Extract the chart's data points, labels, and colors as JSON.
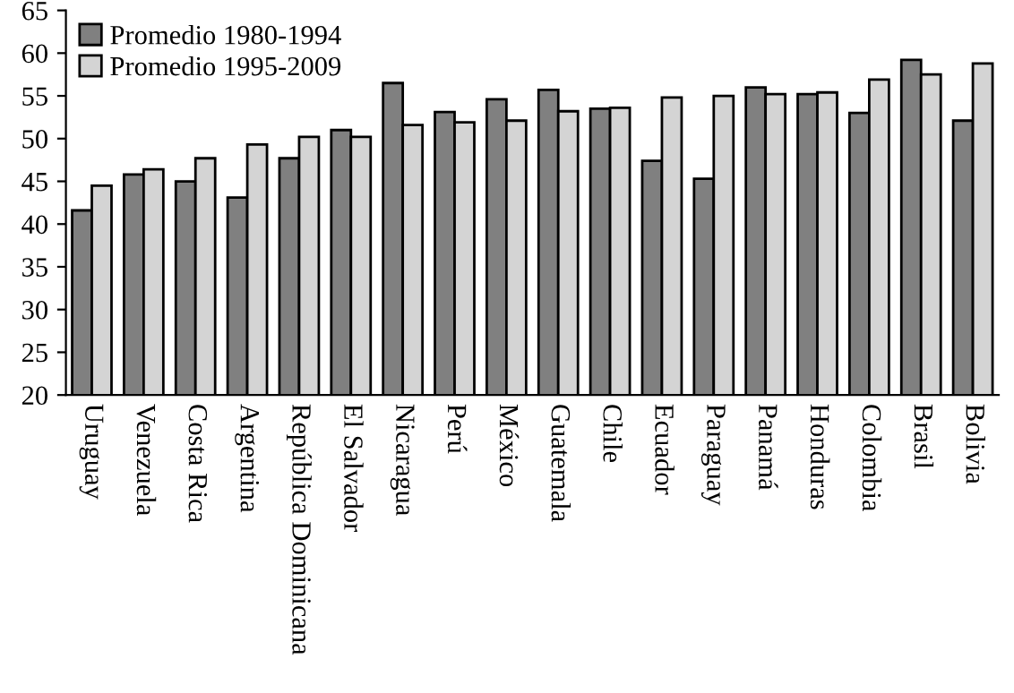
{
  "chart_data": {
    "type": "bar",
    "categories": [
      "Uruguay",
      "Venezuela",
      "Costa Rica",
      "Argentina",
      "República Dominicana",
      "El Salvador",
      "Nicaragua",
      "Perú",
      "México",
      "Guatemala",
      "Chile",
      "Ecuador",
      "Paraguay",
      "Panamá",
      "Honduras",
      "Colombia",
      "Brasil",
      "Bolivia"
    ],
    "series": [
      {
        "name": "Promedio 1980-1994",
        "color": "#808080",
        "values": [
          41.6,
          45.8,
          45.0,
          43.1,
          47.7,
          51.0,
          56.5,
          53.1,
          54.6,
          55.7,
          53.5,
          47.4,
          45.3,
          56.0,
          55.2,
          53.0,
          59.2,
          52.1
        ]
      },
      {
        "name": "Promedio 1995-2009",
        "color": "#d4d4d4",
        "values": [
          44.5,
          46.4,
          47.7,
          49.3,
          50.2,
          50.2,
          51.6,
          51.9,
          52.1,
          53.2,
          53.6,
          54.8,
          55.0,
          55.2,
          55.4,
          56.9,
          57.5,
          58.8
        ]
      }
    ],
    "ylim": [
      20,
      65
    ],
    "yticks": [
      20,
      25,
      30,
      35,
      40,
      45,
      50,
      55,
      60,
      65
    ],
    "legend": "top left"
  }
}
